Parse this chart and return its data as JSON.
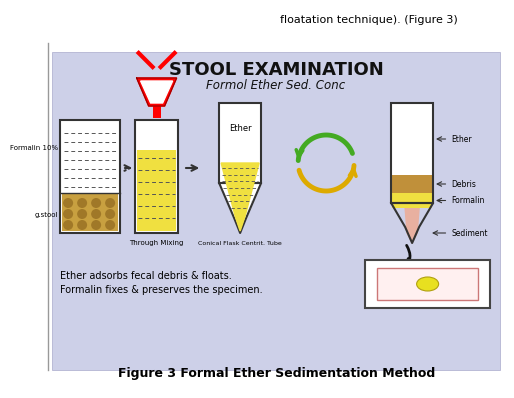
{
  "title_main": "STOOL EXAMINATION",
  "title_sub": "Formol Ether Sed. Conc",
  "bg_color_top": "#d0d4ee",
  "bg_color": "#c8cce8",
  "outer_bg": "#ffffff",
  "caption_line1": "Ether adsorbs fecal debris & floats.",
  "caption_line2": "Formalin fixes & preserves the specimen.",
  "figure_caption": "Figure 3 Formal Ether Sedimentation Method",
  "header_text": "floatation technique). (Figure 3)",
  "label_through_mixing": "Through Mixing",
  "label_conical": "Conical Flask Centrit. Tube",
  "label_ether_top": "Ether",
  "label_debris": "Debris",
  "label_formalin_layer": "Formalin",
  "label_sediment": "Sediment",
  "label_ether_conical": "Ether",
  "label_formalin_jar": "Formalin 10%",
  "label_gastool": "g.stool"
}
